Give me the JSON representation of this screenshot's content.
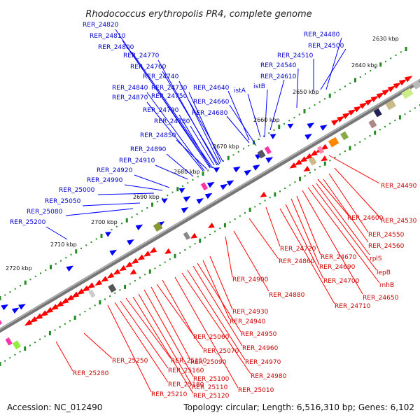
{
  "title": "Rhodococcus erythropolis PR4, complete genome",
  "footer": {
    "accession": "Accession: NC_012490",
    "summary": "Topology: circular; Length: 6,516,310 bp; Genes: 6,102"
  },
  "colors": {
    "forward": "#0000ff",
    "reverse": "#ff0000",
    "ticks": "#228b22",
    "backbone": "#888888"
  },
  "kbp_markers": [
    "2630 kbp",
    "2640 kbp",
    "2650 kbp",
    "2660 kbp",
    "2670 kbp",
    "2680 kbp",
    "2690 kbp",
    "2700 kbp",
    "2710 kbp",
    "2720 kbp"
  ],
  "top_labels": [
    "RER_24820",
    "RER_24810",
    "RER_24800",
    "RER_24770",
    "RER_24760",
    "RER_24740",
    "RER_24730",
    "RER_24840",
    "RER_24750",
    "RER_24870",
    "RER_24790",
    "RER_24780",
    "RER_24850",
    "RER_24890",
    "RER_24910",
    "RER_24920",
    "RER_24990",
    "RER_25000",
    "RER_25050",
    "RER_25080",
    "RER_25200",
    "RER_24640",
    "RER_24660",
    "RER_24680",
    "istA",
    "istB",
    "RER_24610",
    "RER_24540",
    "RER_24510",
    "RER_24500",
    "RER_24480"
  ],
  "bottom_labels": [
    "RER_24490",
    "RER_24530",
    "RER_24550",
    "RER_24560",
    "RER_24600",
    "rplS",
    "lepB",
    "rnhB",
    "RER_24650",
    "RER_24670",
    "RER_24690",
    "RER_24700",
    "RER_24710",
    "RER_24720",
    "RER_24860",
    "RER_24880",
    "RER_24900",
    "RER_24930",
    "RER_24940",
    "RER_24950",
    "RER_24960",
    "RER_24970",
    "RER_24980",
    "RER_25010",
    "RER_25060",
    "RER_25070",
    "RER_25090",
    "RER_25100",
    "RER_25110",
    "RER_25120",
    "RER_25150",
    "RER_25160",
    "RER_25180",
    "RER_25210",
    "RER_25250",
    "RER_25280"
  ]
}
